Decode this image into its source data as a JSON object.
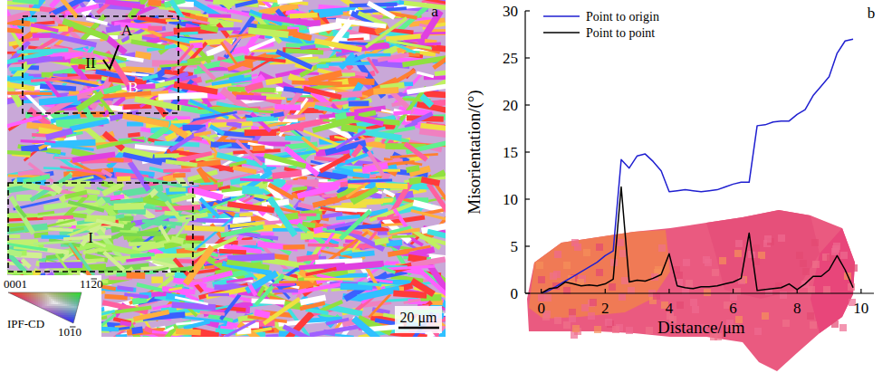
{
  "map_panel": {
    "panel_label": "a",
    "region_labels": [
      "I",
      "II"
    ],
    "point_labels": [
      "A",
      "B"
    ],
    "scale_bar": "20 μm",
    "ipf_legend": {
      "title": "IPF-CD",
      "corners": [
        "0001",
        "1120",
        "1010"
      ]
    }
  },
  "chart_data": {
    "type": "line",
    "panel_label": "b",
    "x_label": "Distance/μm",
    "y_label": "Misorientation/(°)",
    "x": [
      0,
      0.25,
      0.5,
      0.75,
      1,
      1.25,
      1.5,
      1.75,
      2,
      2.25,
      2.5,
      2.75,
      3,
      3.25,
      3.5,
      3.75,
      4,
      4.25,
      4.5,
      4.75,
      5,
      5.25,
      5.5,
      5.75,
      6,
      6.25,
      6.5,
      6.75,
      7,
      7.25,
      7.5,
      7.75,
      8,
      8.25,
      8.5,
      8.75,
      9,
      9.25,
      9.5,
      9.75
    ],
    "series": [
      {
        "name": "Point to origin",
        "color": "#1f1fd0",
        "values": [
          0,
          0.3,
          0.8,
          1.3,
          1.8,
          2.3,
          2.8,
          3.3,
          4.0,
          4.5,
          14.2,
          13.3,
          14.6,
          14.8,
          14.0,
          13.0,
          10.8,
          10.9,
          11.0,
          10.9,
          10.8,
          10.9,
          11.0,
          11.3,
          11.6,
          11.8,
          11.8,
          17.8,
          17.9,
          18.2,
          18.3,
          18.3,
          19.0,
          19.5,
          21.0,
          22.0,
          23.0,
          25.5,
          26.8,
          27.0
        ]
      },
      {
        "name": "Point to point",
        "color": "#000000",
        "values": [
          0,
          0.5,
          0.6,
          1.2,
          1.0,
          0.8,
          0.9,
          0.8,
          1.0,
          1.5,
          11.3,
          1.2,
          1.4,
          1.3,
          1.6,
          2.0,
          4.2,
          0.8,
          0.6,
          0.5,
          0.7,
          0.7,
          0.8,
          1.0,
          1.2,
          1.6,
          6.4,
          0.3,
          0.4,
          0.5,
          0.6,
          1.0,
          0.4,
          1.0,
          1.8,
          1.8,
          2.5,
          4.0,
          2.5,
          0.6
        ]
      }
    ],
    "xlim": [
      -0.5,
      10.4
    ],
    "xticks": [
      0,
      2,
      4,
      6,
      8,
      10
    ],
    "ylim": [
      0,
      30
    ],
    "yticks": [
      0,
      5,
      10,
      15,
      20,
      25,
      30
    ],
    "legend": "top-left",
    "grid": false
  }
}
